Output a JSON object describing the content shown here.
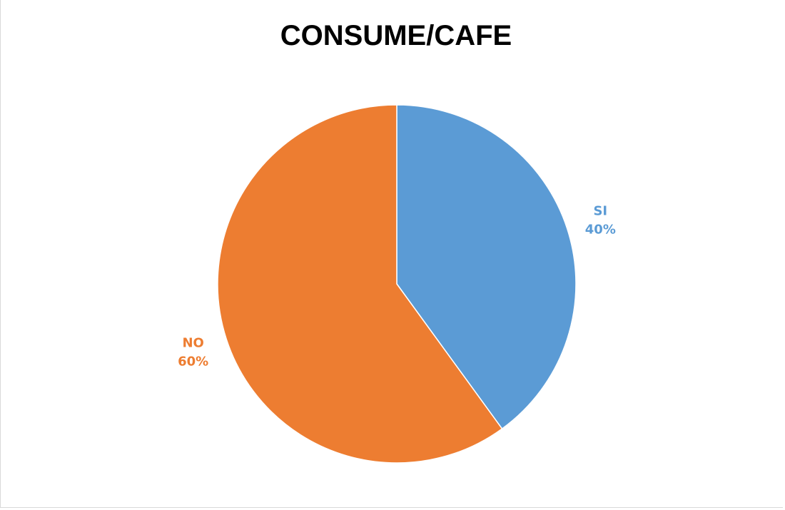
{
  "chart_data": {
    "type": "pie",
    "title": "CONSUME/CAFE",
    "categories": [
      "SI",
      "NO"
    ],
    "values": [
      40,
      60
    ],
    "percent_labels": [
      "40%",
      "60%"
    ],
    "colors": [
      "#5b9bd5",
      "#ed7d31"
    ],
    "legend": "none",
    "data_labels": "outside, category name and percentage, colored as slice"
  }
}
